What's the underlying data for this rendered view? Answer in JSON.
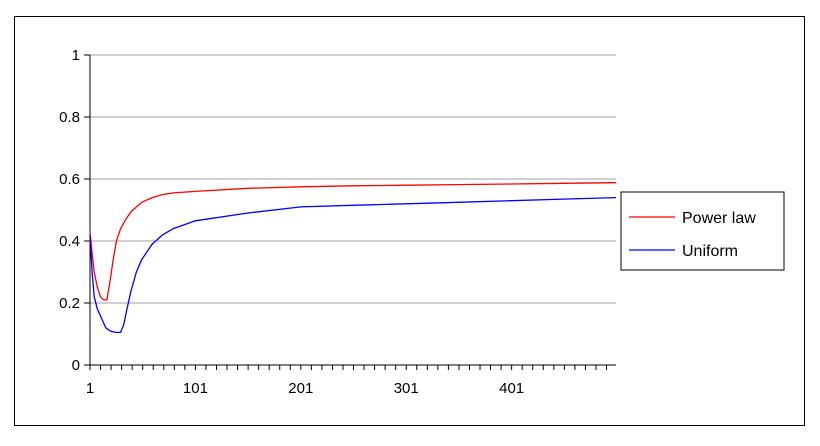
{
  "chart_data": {
    "type": "line",
    "title": "",
    "xlabel": "",
    "ylabel": "",
    "xlim": [
      1,
      500
    ],
    "ylim": [
      0,
      1
    ],
    "x_ticks": [
      "1",
      "101",
      "201",
      "301",
      "401"
    ],
    "y_ticks": [
      "0",
      "0.2",
      "0.4",
      "0.6",
      "0.8",
      "1"
    ],
    "grid": "horizontal",
    "legend_position": "right",
    "series": [
      {
        "name": "Power law",
        "color": "#ff0000",
        "x": [
          1,
          3,
          5,
          8,
          11,
          14,
          17,
          20,
          23,
          26,
          30,
          35,
          40,
          50,
          60,
          70,
          80,
          101,
          150,
          201,
          250,
          301,
          350,
          401,
          450,
          500
        ],
        "y": [
          0.43,
          0.36,
          0.3,
          0.25,
          0.22,
          0.21,
          0.21,
          0.27,
          0.34,
          0.4,
          0.44,
          0.47,
          0.495,
          0.525,
          0.54,
          0.55,
          0.555,
          0.56,
          0.57,
          0.575,
          0.578,
          0.58,
          0.582,
          0.584,
          0.586,
          0.588
        ]
      },
      {
        "name": "Uniform",
        "color": "#0000ff",
        "x": [
          1,
          3,
          5,
          8,
          12,
          16,
          20,
          25,
          30,
          33,
          36,
          40,
          45,
          50,
          60,
          70,
          80,
          101,
          150,
          201,
          250,
          301,
          350,
          401,
          450,
          500
        ],
        "y": [
          0.42,
          0.3,
          0.22,
          0.18,
          0.15,
          0.12,
          0.11,
          0.105,
          0.105,
          0.13,
          0.18,
          0.24,
          0.3,
          0.34,
          0.39,
          0.42,
          0.44,
          0.465,
          0.49,
          0.51,
          0.515,
          0.52,
          0.525,
          0.53,
          0.535,
          0.54
        ]
      }
    ]
  }
}
